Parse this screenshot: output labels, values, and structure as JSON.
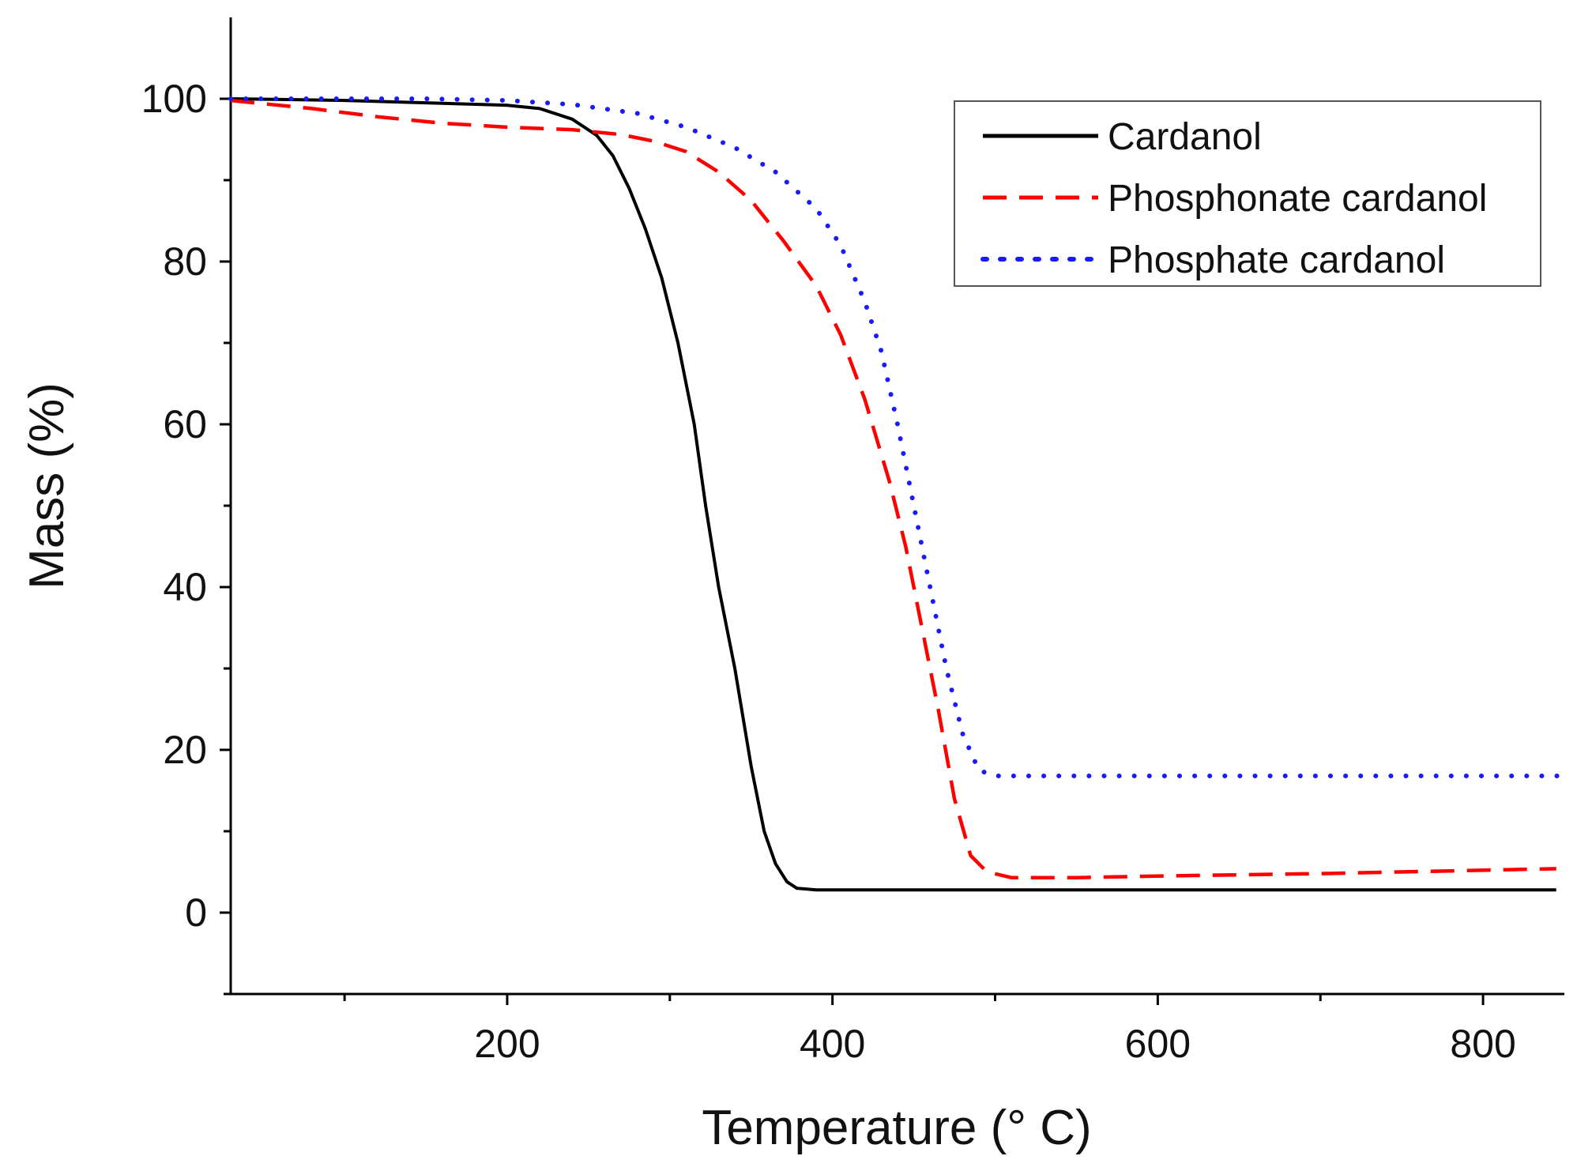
{
  "chart_data": {
    "type": "line",
    "title": "",
    "xlabel": "Temperature (° C)",
    "ylabel": "Mass (%)",
    "xlim": [
      30,
      850
    ],
    "ylim": [
      -10,
      110
    ],
    "x_major_ticks": [
      200,
      400,
      600,
      800
    ],
    "x_tick_labels": [
      "200",
      "400",
      "600",
      "800"
    ],
    "x_minor_ticks": [
      100,
      300,
      500,
      700
    ],
    "y_major_ticks": [
      0,
      20,
      40,
      60,
      80,
      100
    ],
    "y_tick_labels": [
      "0",
      "20",
      "40",
      "60",
      "80",
      "100"
    ],
    "y_minor_ticks": [
      -10,
      10,
      30,
      50,
      70,
      90
    ],
    "grid": false,
    "legend_position": "top-right",
    "series": [
      {
        "name": "Cardanol",
        "color": "#000000",
        "style": "solid",
        "points": [
          [
            30,
            100
          ],
          [
            100,
            99.8
          ],
          [
            150,
            99.5
          ],
          [
            200,
            99.2
          ],
          [
            220,
            98.8
          ],
          [
            240,
            97.5
          ],
          [
            255,
            95.5
          ],
          [
            265,
            93
          ],
          [
            275,
            89
          ],
          [
            285,
            84
          ],
          [
            295,
            78
          ],
          [
            305,
            70
          ],
          [
            315,
            60
          ],
          [
            322,
            50
          ],
          [
            330,
            40
          ],
          [
            340,
            30
          ],
          [
            350,
            18
          ],
          [
            358,
            10
          ],
          [
            365,
            6
          ],
          [
            372,
            3.8
          ],
          [
            378,
            3
          ],
          [
            390,
            2.8
          ],
          [
            500,
            2.8
          ],
          [
            700,
            2.8
          ],
          [
            845,
            2.8
          ]
        ]
      },
      {
        "name": "Phosphonate cardanol",
        "color": "#ff0000",
        "style": "dashed",
        "points": [
          [
            30,
            99.8
          ],
          [
            80,
            98.8
          ],
          [
            120,
            97.8
          ],
          [
            160,
            97
          ],
          [
            200,
            96.5
          ],
          [
            240,
            96.2
          ],
          [
            270,
            95.6
          ],
          [
            290,
            94.8
          ],
          [
            310,
            93.5
          ],
          [
            330,
            91
          ],
          [
            350,
            87.5
          ],
          [
            370,
            82.5
          ],
          [
            390,
            77
          ],
          [
            405,
            71
          ],
          [
            420,
            63
          ],
          [
            435,
            53
          ],
          [
            445,
            45
          ],
          [
            455,
            35
          ],
          [
            465,
            25
          ],
          [
            475,
            14
          ],
          [
            485,
            7
          ],
          [
            495,
            5
          ],
          [
            510,
            4.3
          ],
          [
            550,
            4.3
          ],
          [
            600,
            4.5
          ],
          [
            700,
            4.8
          ],
          [
            845,
            5.4
          ]
        ]
      },
      {
        "name": "Phosphate cardanol",
        "color": "#1a1aff",
        "style": "dotted",
        "points": [
          [
            30,
            100
          ],
          [
            100,
            100
          ],
          [
            150,
            100
          ],
          [
            200,
            99.8
          ],
          [
            240,
            99.3
          ],
          [
            280,
            98.2
          ],
          [
            310,
            96.5
          ],
          [
            340,
            94
          ],
          [
            365,
            91
          ],
          [
            390,
            86.5
          ],
          [
            405,
            82
          ],
          [
            420,
            75
          ],
          [
            430,
            69
          ],
          [
            440,
            60
          ],
          [
            450,
            50
          ],
          [
            460,
            40
          ],
          [
            470,
            30
          ],
          [
            480,
            22
          ],
          [
            490,
            17.5
          ],
          [
            500,
            16.8
          ],
          [
            550,
            16.8
          ],
          [
            700,
            16.8
          ],
          [
            850,
            16.8
          ]
        ]
      }
    ]
  }
}
